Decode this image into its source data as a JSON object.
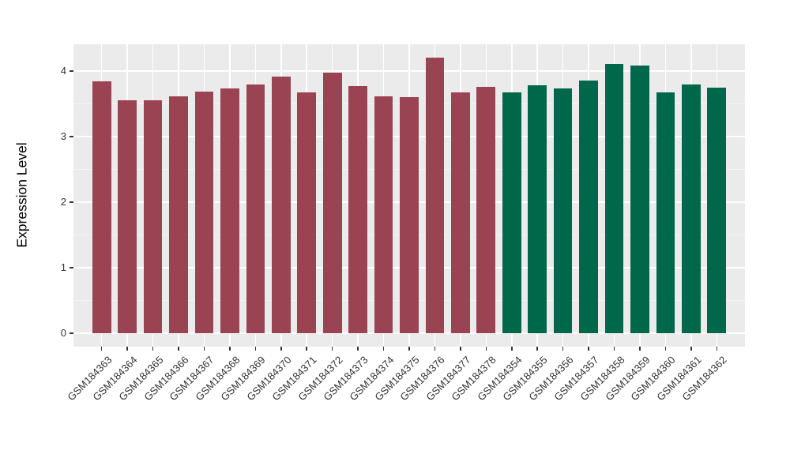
{
  "chart_data": {
    "type": "bar",
    "title": "",
    "xlabel": "",
    "ylabel": "Expression Level",
    "categories": [
      "GSM184363",
      "GSM184364",
      "GSM184365",
      "GSM184366",
      "GSM184367",
      "GSM184368",
      "GSM184369",
      "GSM184370",
      "GSM184371",
      "GSM184372",
      "GSM184373",
      "GSM184374",
      "GSM184375",
      "GSM184376",
      "GSM184377",
      "GSM184378",
      "GSM184354",
      "GSM184355",
      "GSM184356",
      "GSM184357",
      "GSM184358",
      "GSM184359",
      "GSM184360",
      "GSM184361",
      "GSM184362"
    ],
    "values": [
      3.84,
      3.55,
      3.56,
      3.62,
      3.69,
      3.74,
      3.79,
      3.92,
      3.68,
      3.97,
      3.77,
      3.62,
      3.6,
      4.2,
      3.67,
      3.76,
      3.67,
      3.78,
      3.73,
      3.85,
      4.11,
      4.09,
      3.68,
      3.79,
      3.75
    ],
    "color_groups": [
      {
        "color": "#9A4453",
        "count": 16
      },
      {
        "color": "#00684A",
        "count": 9
      }
    ],
    "yticks": [
      0,
      1,
      2,
      3,
      4
    ],
    "ytick_labels": [
      "0",
      "1",
      "2",
      "3",
      "4"
    ],
    "yminor": [
      0.5,
      1.5,
      2.5,
      3.5
    ],
    "ylim": [
      0,
      4.41
    ],
    "grid": "on",
    "legend": "none",
    "panel_background": "#EBEBEB",
    "grid_major_color": "#FFFFFF",
    "grid_minor_color": "#F4F4F4",
    "axis_text_color": "#333333",
    "axis_title_color": "#000000",
    "bar_width_fraction": 0.73
  }
}
